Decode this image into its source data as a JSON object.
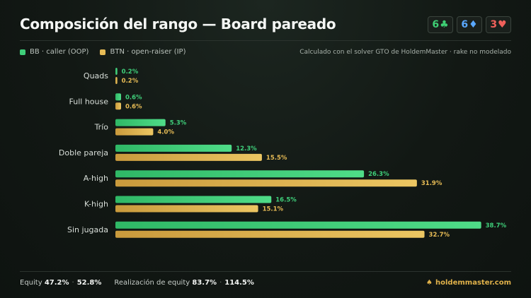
{
  "header": {
    "title": "Composición del rango — Board pareado",
    "board": [
      {
        "rank": "6",
        "suit": "♣",
        "color": "#3ecf74"
      },
      {
        "rank": "6",
        "suit": "♦",
        "color": "#5aa8ff"
      },
      {
        "rank": "3",
        "suit": "♥",
        "color": "#f0605a"
      }
    ]
  },
  "legend": {
    "bb_label": "BB · caller (OOP)",
    "btn_label": "BTN · open-raiser (IP)",
    "note": "Calculado con el solver GTO de HoldemMaster · rake no modelado"
  },
  "colors": {
    "bb": "#3fcf7a",
    "btn": "#e6bb55"
  },
  "chart_data": {
    "type": "bar",
    "orientation": "horizontal",
    "categories": [
      "Quads",
      "Full house",
      "Trío",
      "Doble pareja",
      "A-high",
      "K-high",
      "Sin jugada"
    ],
    "series": [
      {
        "name": "BB · caller (OOP)",
        "values": [
          0.2,
          0.6,
          5.3,
          12.3,
          26.3,
          16.5,
          38.7
        ]
      },
      {
        "name": "BTN · open-raiser (IP)",
        "values": [
          0.2,
          0.6,
          4.0,
          15.5,
          31.9,
          15.1,
          32.7
        ]
      }
    ],
    "value_suffix": "%",
    "xlim": [
      0,
      40
    ],
    "grid": false
  },
  "footer": {
    "equity_label": "Equity",
    "equity_bb": "47.2%",
    "equity_btn": "52.8%",
    "realization_label": "Realización de equity",
    "realization_bb": "83.7%",
    "realization_btn": "114.5%",
    "brand": "holdemmaster.com"
  }
}
